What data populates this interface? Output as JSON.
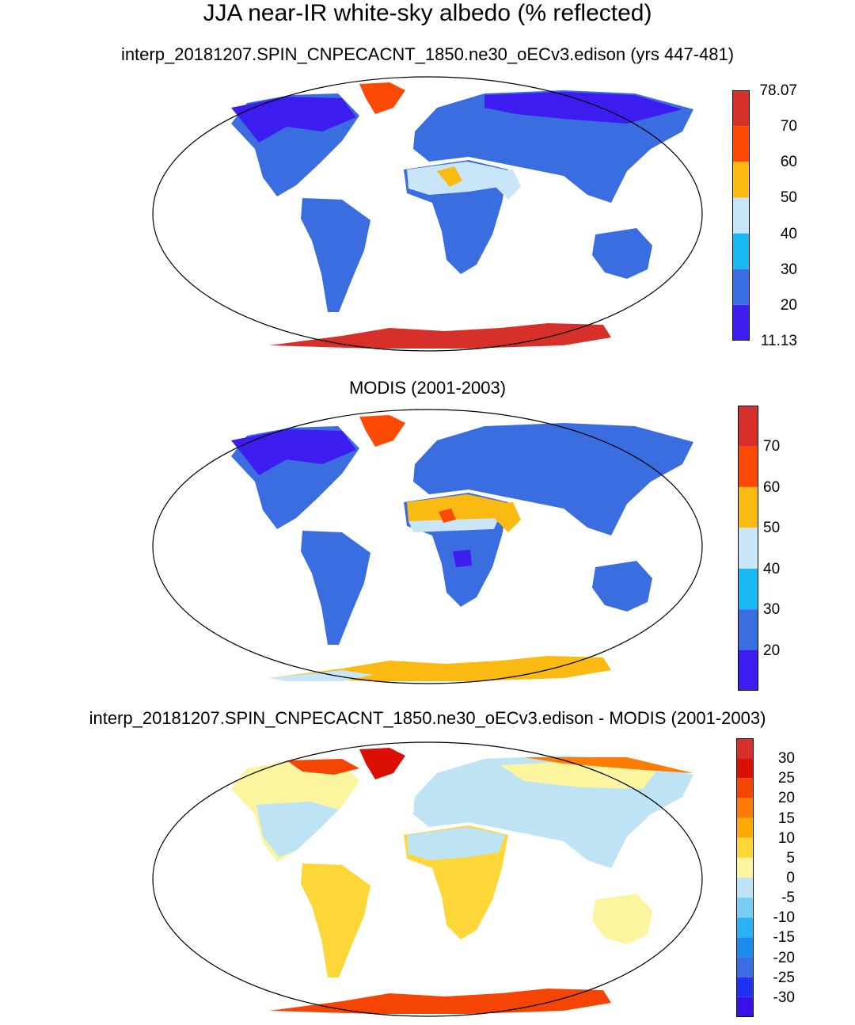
{
  "title": "JJA near-IR white-sky albedo (% reflected)",
  "panels": [
    {
      "subtitle": "interp_20181207.SPIN_CNPECACNT_1850.ne30_oECv3.edison (yrs 447-481)",
      "colorbar": {
        "colors": [
          "#3d1cf0",
          "#3a6de0",
          "#16b9f1",
          "#c8e6f7",
          "#fbba12",
          "#fc4a05",
          "#d7302a"
        ],
        "labels": [
          "11.13",
          "20",
          "30",
          "40",
          "50",
          "60",
          "70",
          "78.07"
        ]
      }
    },
    {
      "subtitle": "MODIS (2001-2003)",
      "colorbar": {
        "colors": [
          "#3d1cf0",
          "#3a6de0",
          "#16b9f1",
          "#c8e6f7",
          "#fbba12",
          "#fc4a05",
          "#d7302a"
        ],
        "labels": [
          "20",
          "30",
          "40",
          "50",
          "60",
          "70"
        ]
      }
    },
    {
      "subtitle": "interp_20181207.SPIN_CNPECACNT_1850.ne30_oECv3.edison - MODIS (2001-2003)",
      "colorbar": {
        "colors": [
          "#3a10e8",
          "#2030f0",
          "#3a6de0",
          "#1a8cf0",
          "#29b2f4",
          "#79cdf5",
          "#bde3f5",
          "#fbf5a0",
          "#fdd738",
          "#fcab05",
          "#fc7d05",
          "#f54505",
          "#dc0f05",
          "#d7302a"
        ],
        "labels": [
          "-30",
          "-25",
          "-20",
          "-15",
          "-10",
          "-5",
          "0",
          "5",
          "10",
          "15",
          "20",
          "25",
          "30"
        ]
      }
    }
  ]
}
